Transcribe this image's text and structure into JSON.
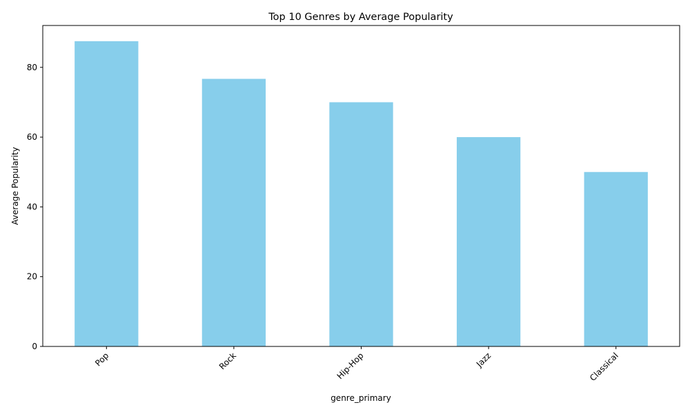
{
  "chart_data": {
    "type": "bar",
    "title": "Top 10 Genres by Average Popularity",
    "xlabel": "genre_primary",
    "ylabel": "Average Popularity",
    "categories": [
      "Pop",
      "Rock",
      "Hip-Hop",
      "Jazz",
      "Classical"
    ],
    "values": [
      87.5,
      76.7,
      70.0,
      60.0,
      50.0
    ],
    "ylim": [
      0,
      92
    ],
    "yticks": [
      0,
      20,
      40,
      60,
      80
    ],
    "ytick_labels": [
      "0",
      "20",
      "40",
      "60",
      "80"
    ],
    "bar_color": "#87CEEB",
    "grid": false,
    "legend": "none",
    "xtick_rotation_deg": 45
  }
}
